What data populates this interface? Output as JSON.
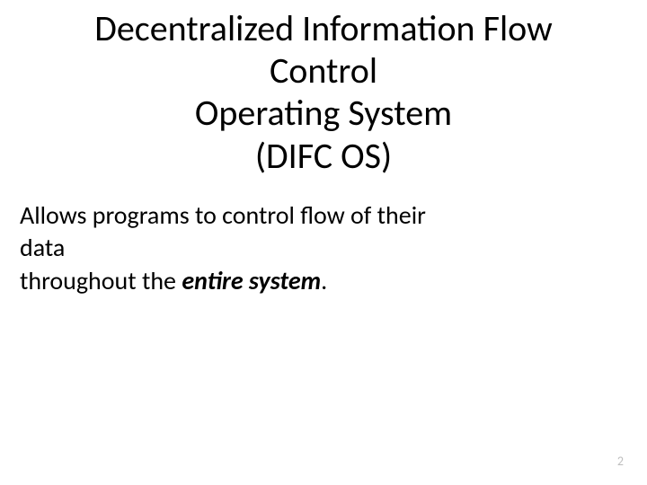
{
  "slide": {
    "title_line1": "Decentralized Information Flow",
    "title_line2": "Control",
    "title_line3": "Operating System",
    "title_line4": "(DIFC OS)",
    "body_line1": "Allows programs to control flow of their",
    "body_line2": "data",
    "body_line3_pre": "throughout the ",
    "body_line3_emph": "entire system",
    "body_line3_post": "."
  },
  "page_number": "2",
  "style": {
    "background_color": "#ffffff",
    "title_color": "#000000",
    "title_fontsize_pt": 40,
    "body_color": "#000000",
    "body_fontsize_pt": 28,
    "pagenum_color": "#bfbfbf",
    "pagenum_fontsize_pt": 14,
    "font_family": "Calibri"
  }
}
